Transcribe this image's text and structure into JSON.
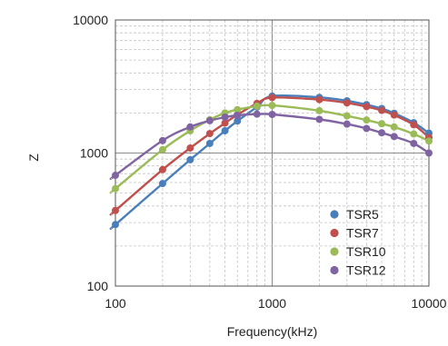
{
  "chart_data": {
    "type": "scatter",
    "title": "",
    "xlabel": "Frequency(kHz)",
    "ylabel": "Z",
    "xscale": "log",
    "yscale": "log",
    "xlim": [
      100,
      10000
    ],
    "ylim": [
      100,
      10000
    ],
    "x_ticks": [
      "100",
      "1000",
      "10000"
    ],
    "y_ticks": [
      "100",
      "1000",
      "10000"
    ],
    "grid": "major and minor, dashed",
    "legend_position": "bottom-right",
    "x": [
      100,
      200,
      300,
      400,
      500,
      600,
      800,
      1000,
      2000,
      3000,
      4000,
      5000,
      6000,
      8000,
      10000
    ],
    "series": [
      {
        "name": "TSR5",
        "color": "#4a7ebb",
        "values": [
          290,
          590,
          890,
          1180,
          1470,
          1740,
          2220,
          2680,
          2620,
          2470,
          2310,
          2160,
          1990,
          1690,
          1410
        ]
      },
      {
        "name": "TSR7",
        "color": "#c0504d",
        "values": [
          370,
          750,
          1090,
          1400,
          1680,
          1940,
          2360,
          2610,
          2520,
          2380,
          2230,
          2090,
          1930,
          1630,
          1310
        ]
      },
      {
        "name": "TSR10",
        "color": "#9bbb59",
        "values": [
          540,
          1060,
          1470,
          1780,
          2000,
          2120,
          2250,
          2280,
          2080,
          1900,
          1770,
          1660,
          1570,
          1390,
          1230
        ]
      },
      {
        "name": "TSR12",
        "color": "#8064a2",
        "values": [
          680,
          1240,
          1570,
          1750,
          1860,
          1920,
          1960,
          1950,
          1790,
          1650,
          1530,
          1420,
          1330,
          1180,
          1000
        ]
      }
    ]
  }
}
